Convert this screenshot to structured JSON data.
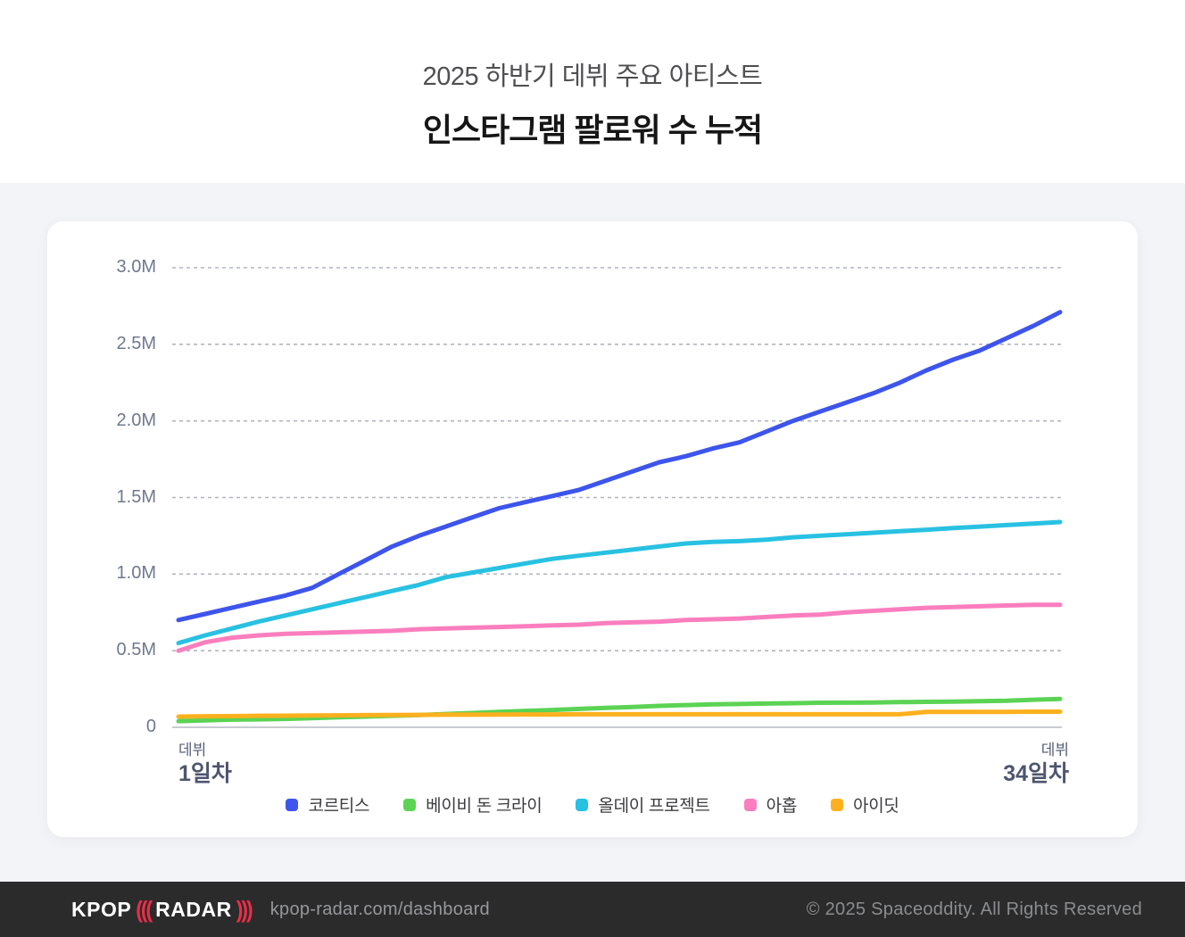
{
  "header": {
    "subtitle": "2025 하반기 데뷔 주요 아티스트",
    "title": "인스타그램 팔로워 수 누적"
  },
  "chart_data": {
    "type": "line",
    "title": "인스타그램 팔로워 수 누적",
    "subtitle": "2025 하반기 데뷔 주요 아티스트",
    "unit": "followers (millions)",
    "grid": "horizontal dashed",
    "legend_position": "bottom",
    "ylim": [
      0,
      3.0
    ],
    "y_ticks": [
      {
        "label": "3.0M",
        "value": 3.0
      },
      {
        "label": "2.5M",
        "value": 2.5
      },
      {
        "label": "2.0M",
        "value": 2.0
      },
      {
        "label": "1.5M",
        "value": 1.5
      },
      {
        "label": "1.0M",
        "value": 1.0
      },
      {
        "label": "0.5M",
        "value": 0.5
      },
      {
        "label": "0",
        "value": 0
      }
    ],
    "x_axis": {
      "label_left": {
        "small": "데뷔",
        "big": "1일차"
      },
      "label_right": {
        "small": "데뷔",
        "big": "34일차"
      }
    },
    "x": [
      1,
      2,
      3,
      4,
      5,
      6,
      7,
      8,
      9,
      10,
      11,
      12,
      13,
      14,
      15,
      16,
      17,
      18,
      19,
      20,
      21,
      22,
      23,
      24,
      25,
      26,
      27,
      28,
      29,
      30,
      31,
      32,
      33,
      34
    ],
    "series": [
      {
        "name": "코르티스",
        "color": "#3d55ec",
        "values": [
          0.7,
          0.74,
          0.78,
          0.82,
          0.86,
          0.91,
          1.0,
          1.09,
          1.18,
          1.25,
          1.31,
          1.37,
          1.43,
          1.47,
          1.51,
          1.55,
          1.61,
          1.67,
          1.73,
          1.77,
          1.82,
          1.86,
          1.93,
          2.0,
          2.06,
          2.12,
          2.18,
          2.25,
          2.33,
          2.4,
          2.46,
          2.54,
          2.62,
          2.71
        ]
      },
      {
        "name": "베이비 돈 크라이",
        "color": "#5bd354",
        "values": [
          0.04,
          0.045,
          0.05,
          0.052,
          0.055,
          0.06,
          0.065,
          0.07,
          0.075,
          0.08,
          0.087,
          0.093,
          0.1,
          0.107,
          0.113,
          0.12,
          0.127,
          0.133,
          0.14,
          0.145,
          0.15,
          0.152,
          0.155,
          0.157,
          0.16,
          0.161,
          0.162,
          0.164,
          0.166,
          0.168,
          0.17,
          0.173,
          0.18,
          0.185
        ]
      },
      {
        "name": "올데이 프로젝트",
        "color": "#28c1e2",
        "values": [
          0.55,
          0.6,
          0.645,
          0.69,
          0.73,
          0.77,
          0.81,
          0.85,
          0.89,
          0.93,
          0.98,
          1.01,
          1.04,
          1.07,
          1.1,
          1.12,
          1.14,
          1.16,
          1.18,
          1.2,
          1.21,
          1.215,
          1.225,
          1.24,
          1.25,
          1.26,
          1.27,
          1.28,
          1.29,
          1.3,
          1.31,
          1.32,
          1.33,
          1.34
        ]
      },
      {
        "name": "아홉",
        "color": "#fa7ebe",
        "values": [
          0.5,
          0.555,
          0.585,
          0.6,
          0.61,
          0.615,
          0.62,
          0.625,
          0.63,
          0.64,
          0.645,
          0.65,
          0.655,
          0.66,
          0.665,
          0.67,
          0.68,
          0.685,
          0.69,
          0.7,
          0.705,
          0.71,
          0.72,
          0.73,
          0.735,
          0.75,
          0.76,
          0.77,
          0.78,
          0.785,
          0.79,
          0.795,
          0.8,
          0.8
        ]
      },
      {
        "name": "아이딧",
        "color": "#fdb01e",
        "values": [
          0.07,
          0.072,
          0.073,
          0.075,
          0.076,
          0.077,
          0.078,
          0.079,
          0.08,
          0.081,
          0.082,
          0.082,
          0.083,
          0.084,
          0.084,
          0.085,
          0.085,
          0.085,
          0.085,
          0.085,
          0.085,
          0.085,
          0.085,
          0.085,
          0.085,
          0.085,
          0.085,
          0.085,
          0.1,
          0.1,
          0.1,
          0.101,
          0.102,
          0.102
        ]
      }
    ]
  },
  "footer": {
    "logo": {
      "kpop": "KPOP",
      "waves_open": "(((",
      "radar": "RADAR",
      "waves_close": ")))"
    },
    "url": "kpop-radar.com/dashboard",
    "copyright": "© 2025 Spaceoddity. All Rights Reserved"
  }
}
